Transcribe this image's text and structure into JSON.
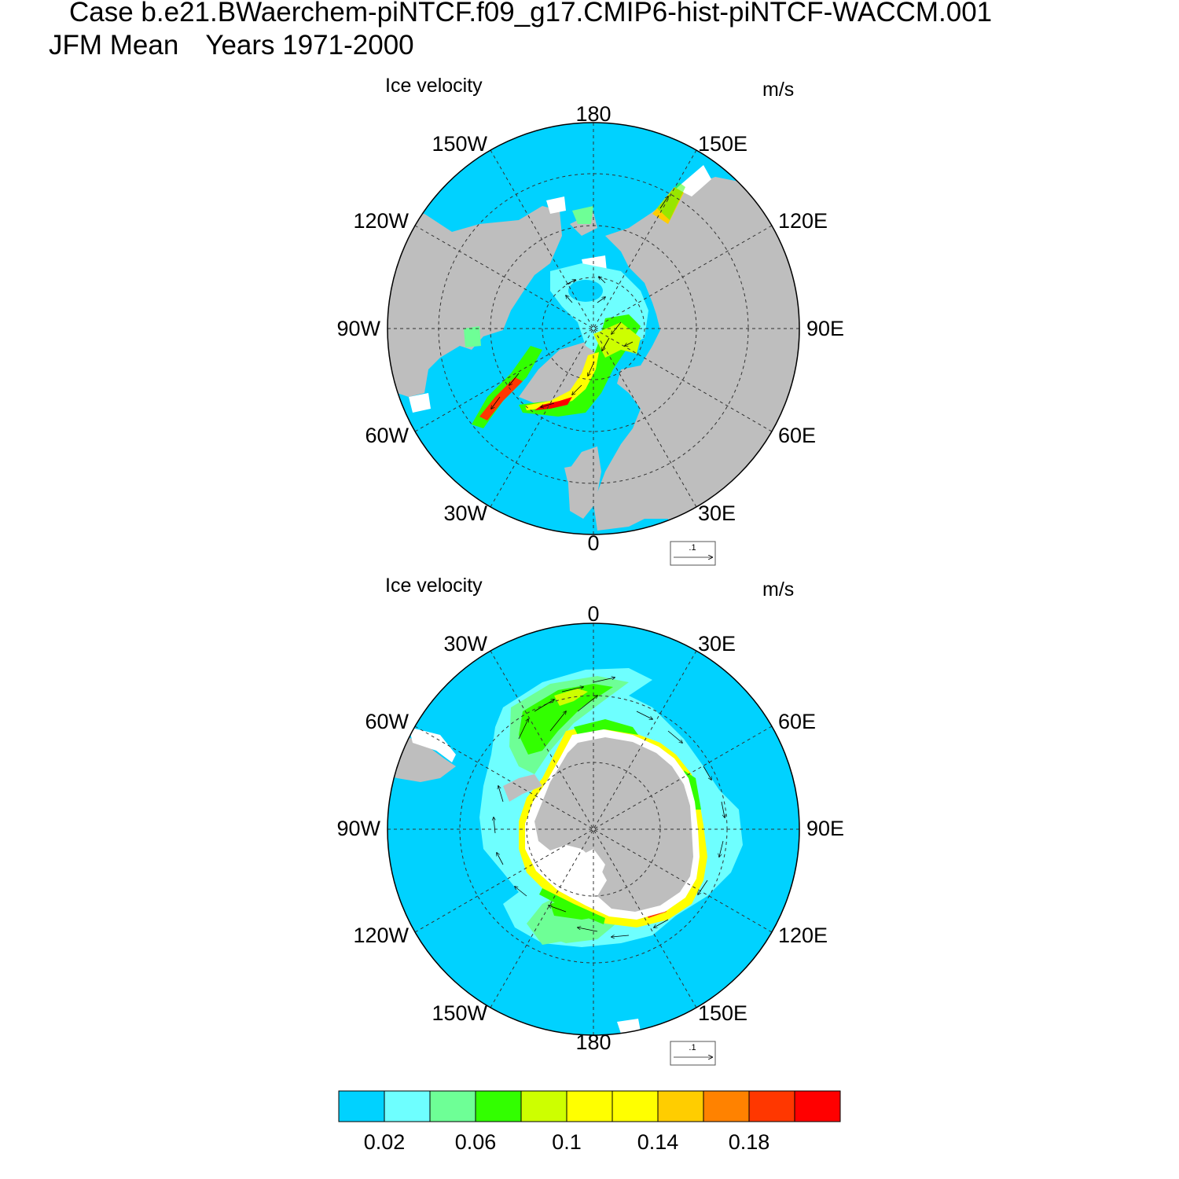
{
  "header": {
    "case_line": "Case b.e21.BWaerchem-piNTCF.f09_g17.CMIP6-hist-piNTCF-WACCM.001",
    "season": "JFM Mean",
    "years": "Years 1971-2000"
  },
  "panels": [
    {
      "hemisphere": "north",
      "title": "Ice velocity",
      "units": "m/s",
      "reference_vector": ".1",
      "lon_labels": {
        "top": "180",
        "top_left": "150W",
        "top_right": "150E",
        "upper_left": "120W",
        "upper_right": "120E",
        "left": "90W",
        "right": "90E",
        "lower_left": "60W",
        "lower_right": "60E",
        "bottom_left": "30W",
        "bottom_right": "30E",
        "bottom": "0"
      }
    },
    {
      "hemisphere": "south",
      "title": "Ice velocity",
      "units": "m/s",
      "reference_vector": ".1",
      "lon_labels": {
        "top": "0",
        "top_left": "30W",
        "top_right": "30E",
        "upper_left": "60W",
        "upper_right": "60E",
        "left": "90W",
        "right": "90E",
        "lower_left": "120W",
        "lower_right": "120E",
        "bottom_left": "150W",
        "bottom_right": "150E",
        "bottom": "180"
      }
    }
  ],
  "colorbar": {
    "colors": [
      "#00d2ff",
      "#6effff",
      "#6eff96",
      "#32ff00",
      "#cdff00",
      "#ffff00",
      "#ffff00",
      "#ffcd00",
      "#ff8200",
      "#ff3700",
      "#ff0000"
    ],
    "tick_labels": [
      "0.02",
      "0.06",
      "0.1",
      "0.14",
      "0.18"
    ]
  },
  "colors": {
    "ocean_ice": "#00d2ff",
    "land": "#bebebe",
    "no_data": "#ffffff"
  }
}
